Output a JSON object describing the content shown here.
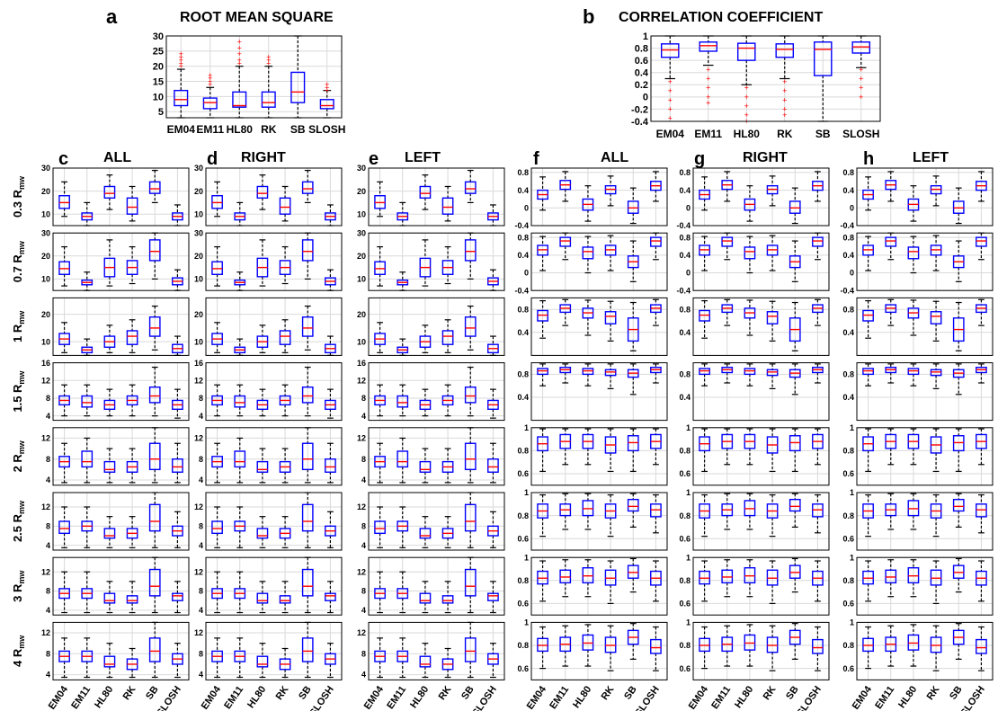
{
  "panel_a": {
    "letter": "a",
    "title": "ROOT MEAN SQUARE",
    "categories": [
      "EM04",
      "EM11",
      "HL80",
      "RK",
      "SB",
      "SLOSH"
    ],
    "yticks": [
      5,
      10,
      15,
      20,
      25,
      30
    ],
    "ylim": [
      3,
      30
    ]
  },
  "panel_b": {
    "letter": "b",
    "title": "CORRELATION COEFFICIENT",
    "categories": [
      "EM04",
      "EM11",
      "HL80",
      "RK",
      "SB",
      "SLOSH"
    ],
    "yticks": [
      -0.4,
      -0.2,
      0,
      0.2,
      0.4,
      0.6,
      0.8,
      1
    ],
    "ylim": [
      -0.4,
      1
    ]
  },
  "grid_columns": [
    {
      "letter": "c",
      "title": "ALL"
    },
    {
      "letter": "d",
      "title": "RIGHT"
    },
    {
      "letter": "e",
      "title": "LEFT"
    },
    {
      "letter": "f",
      "title": "ALL"
    },
    {
      "letter": "g",
      "title": "RIGHT"
    },
    {
      "letter": "h",
      "title": "LEFT"
    }
  ],
  "row_labels": [
    {
      "value": "0.3 R",
      "sub": "mw"
    },
    {
      "value": "0.7 R",
      "sub": "mw"
    },
    {
      "value": "1 R",
      "sub": "mw"
    },
    {
      "value": "1.5 R",
      "sub": "mw"
    },
    {
      "value": "2 R",
      "sub": "mw"
    },
    {
      "value": "2.5 R",
      "sub": "mw"
    },
    {
      "value": "3 R",
      "sub": "mw"
    },
    {
      "value": "4 R",
      "sub": "mw"
    }
  ],
  "rms_row_axes": [
    {
      "ylim": [
        5,
        30
      ],
      "yticks": [
        10,
        20,
        30
      ]
    },
    {
      "ylim": [
        5,
        30
      ],
      "yticks": [
        10,
        20,
        30
      ]
    },
    {
      "ylim": [
        5,
        26
      ],
      "yticks": [
        10,
        20
      ]
    },
    {
      "ylim": [
        3,
        16
      ],
      "yticks": [
        4,
        8,
        12,
        16
      ]
    },
    {
      "ylim": [
        3,
        14
      ],
      "yticks": [
        4,
        8,
        12
      ]
    },
    {
      "ylim": [
        3,
        15
      ],
      "yticks": [
        4,
        8,
        12
      ]
    },
    {
      "ylim": [
        3,
        15
      ],
      "yticks": [
        4,
        8,
        12
      ]
    },
    {
      "ylim": [
        3,
        14
      ],
      "yticks": [
        4,
        8,
        12
      ]
    }
  ],
  "cc_row_axes": [
    {
      "ylim": [
        -0.4,
        0.9
      ],
      "yticks": [
        -0.4,
        0,
        0.4,
        0.8
      ]
    },
    {
      "ylim": [
        -0.4,
        0.9
      ],
      "yticks": [
        -0.4,
        0,
        0.4,
        0.8
      ]
    },
    {
      "ylim": [
        0,
        1
      ],
      "yticks": [
        0.4,
        0.8
      ]
    },
    {
      "ylim": [
        0,
        1
      ],
      "yticks": [
        0.4,
        0.8
      ]
    },
    {
      "ylim": [
        0.5,
        1
      ],
      "yticks": [
        0.6,
        0.8,
        1
      ]
    },
    {
      "ylim": [
        0.5,
        1
      ],
      "yticks": [
        0.6,
        0.8,
        1
      ]
    },
    {
      "ylim": [
        0.5,
        1
      ],
      "yticks": [
        0.6,
        0.8,
        1
      ]
    },
    {
      "ylim": [
        0.5,
        1
      ],
      "yticks": [
        0.6,
        0.8,
        1
      ]
    }
  ],
  "colors": {
    "box": "#0000ff",
    "median": "#ff0000",
    "whisker": "#000000",
    "outlier": "#ff0000",
    "grid": "#d9d9d9"
  },
  "chart_data": [
    {
      "type": "box",
      "panel": "a",
      "title": "ROOT MEAN SQUARE",
      "categories": [
        "EM04",
        "EM11",
        "HL80",
        "RK",
        "SB",
        "SLOSH"
      ],
      "ylim": [
        3,
        30
      ],
      "stats": [
        [
          3,
          7,
          9,
          12,
          19
        ],
        [
          3,
          6,
          8,
          9.5,
          13
        ],
        [
          3,
          6.5,
          7,
          11.5,
          20
        ],
        [
          3,
          6.5,
          8,
          11.5,
          20
        ],
        [
          3,
          8,
          11.5,
          18,
          31
        ],
        [
          3,
          6,
          7,
          9,
          12
        ]
      ],
      "outliers": [
        [
          20,
          21,
          22,
          23,
          24
        ],
        [
          14,
          15,
          16,
          17
        ],
        [
          21,
          22,
          24,
          26,
          28
        ],
        [
          21,
          22,
          23
        ],
        [],
        [
          12,
          13,
          14
        ]
      ]
    },
    {
      "type": "box",
      "panel": "b",
      "title": "CORRELATION COEFFICIENT",
      "categories": [
        "EM04",
        "EM11",
        "HL80",
        "RK",
        "SB",
        "SLOSH"
      ],
      "ylim": [
        -0.4,
        1
      ],
      "stats": [
        [
          0.3,
          0.65,
          0.77,
          0.87,
          1
        ],
        [
          0.52,
          0.75,
          0.84,
          0.9,
          1
        ],
        [
          0.2,
          0.6,
          0.8,
          0.88,
          1
        ],
        [
          0.3,
          0.65,
          0.78,
          0.87,
          1
        ],
        [
          -0.4,
          0.35,
          0.78,
          0.9,
          1
        ],
        [
          0.48,
          0.72,
          0.82,
          0.9,
          1
        ]
      ],
      "outliers": [
        [
          0.25,
          0.1,
          -0.05,
          -0.2,
          -0.35
        ],
        [
          0.45,
          0.3,
          0.15,
          0,
          -0.1
        ],
        [
          0.15,
          0,
          -0.15,
          -0.3,
          -0.4
        ],
        [
          0.25,
          0.1,
          -0.05,
          -0.2,
          -0.3
        ],
        [],
        [
          0.45,
          0.3,
          0.15,
          0
        ]
      ]
    },
    {
      "type": "box",
      "panel": "c-e",
      "metric": "RMS",
      "categories": [
        "EM04",
        "EM11",
        "HL80",
        "RK",
        "SB",
        "SLOSH"
      ],
      "columns": [
        "ALL",
        "RIGHT",
        "LEFT"
      ],
      "rows": [
        {
          "stats": [
            [
              9,
              12.5,
              15,
              18,
              24
            ],
            [
              5,
              7.5,
              9,
              10.5,
              15
            ],
            [
              12,
              17,
              19,
              22,
              27
            ],
            [
              7,
              10,
              13,
              17,
              22
            ],
            [
              15,
              19,
              21,
              24,
              29
            ],
            [
              5,
              7.5,
              9,
              10.5,
              14
            ]
          ]
        },
        {
          "stats": [
            [
              7,
              12,
              14.5,
              17.5,
              24
            ],
            [
              5,
              7.5,
              8.5,
              9.5,
              13
            ],
            [
              7,
              11,
              15,
              19,
              27
            ],
            [
              8,
              12,
              15,
              18,
              24
            ],
            [
              10,
              18,
              22,
              27,
              30
            ],
            [
              5,
              7.5,
              9,
              10.5,
              14
            ]
          ]
        },
        {
          "stats": [
            [
              6,
              9,
              11,
              13,
              17
            ],
            [
              5,
              6,
              7,
              8,
              11
            ],
            [
              6,
              8,
              10,
              12,
              16
            ],
            [
              6,
              9,
              12,
              14,
              18
            ],
            [
              7,
              12,
              15,
              19,
              23
            ],
            [
              5,
              6,
              7.5,
              9,
              12
            ]
          ]
        },
        {
          "stats": [
            [
              4,
              6.5,
              7.5,
              8.5,
              11
            ],
            [
              4,
              6,
              7,
              8.5,
              11
            ],
            [
              4,
              5.5,
              6.5,
              7.5,
              10
            ],
            [
              4,
              6.5,
              7.5,
              8.5,
              11
            ],
            [
              4,
              7,
              8.5,
              10.5,
              15
            ],
            [
              3.5,
              5.5,
              6.5,
              7.5,
              10
            ]
          ]
        },
        {
          "stats": [
            [
              3.5,
              6.5,
              7.5,
              8.5,
              11
            ],
            [
              3.5,
              6.5,
              7.5,
              9.5,
              12
            ],
            [
              3.5,
              5.5,
              6,
              7.5,
              10
            ],
            [
              3.5,
              5.5,
              6.5,
              7.5,
              10
            ],
            [
              3.5,
              6,
              8,
              11,
              14
            ],
            [
              3.5,
              5.5,
              6.5,
              8,
              11
            ]
          ]
        },
        {
          "stats": [
            [
              3.5,
              6.5,
              7.5,
              9,
              12
            ],
            [
              3.5,
              7,
              8,
              9,
              12
            ],
            [
              3.5,
              5.5,
              6,
              7.5,
              10
            ],
            [
              3.5,
              5.5,
              6.5,
              7.5,
              10
            ],
            [
              3.5,
              7,
              9,
              12.5,
              15
            ],
            [
              3.5,
              6,
              7,
              8,
              11
            ]
          ]
        },
        {
          "stats": [
            [
              3.5,
              6.5,
              7.5,
              8.5,
              12
            ],
            [
              3.5,
              6.5,
              7.5,
              8.5,
              12
            ],
            [
              3.5,
              5.5,
              6,
              7.5,
              10
            ],
            [
              3.5,
              5.5,
              6,
              7,
              10
            ],
            [
              3.5,
              7,
              9,
              12.5,
              15
            ],
            [
              3.5,
              6,
              7,
              7.5,
              10
            ]
          ]
        },
        {
          "stats": [
            [
              3.5,
              6.5,
              7.5,
              8.5,
              11
            ],
            [
              3.5,
              6.5,
              7.5,
              8.5,
              11
            ],
            [
              3.5,
              5.5,
              6,
              7.5,
              10
            ],
            [
              3.5,
              5,
              6,
              7,
              9
            ],
            [
              3.5,
              6.5,
              8.5,
              11,
              14
            ],
            [
              3.5,
              6,
              7,
              8,
              10
            ]
          ]
        }
      ]
    },
    {
      "type": "box",
      "panel": "f-h",
      "metric": "CORRELATION COEFFICIENT",
      "categories": [
        "EM04",
        "EM11",
        "HL80",
        "RK",
        "SB",
        "SLOSH"
      ],
      "columns": [
        "ALL",
        "RIGHT",
        "LEFT"
      ],
      "rows": [
        {
          "stats": [
            [
              -0.05,
              0.2,
              0.3,
              0.4,
              0.7
            ],
            [
              0.15,
              0.42,
              0.52,
              0.62,
              0.82
            ],
            [
              -0.3,
              -0.05,
              0.08,
              0.2,
              0.5
            ],
            [
              0.05,
              0.32,
              0.42,
              0.5,
              0.72
            ],
            [
              -0.35,
              -0.12,
              0,
              0.15,
              0.45
            ],
            [
              0.15,
              0.4,
              0.5,
              0.6,
              0.82
            ]
          ]
        },
        {
          "stats": [
            [
              0.05,
              0.4,
              0.52,
              0.62,
              0.82
            ],
            [
              0.3,
              0.6,
              0.72,
              0.8,
              0.9
            ],
            [
              0,
              0.32,
              0.48,
              0.58,
              0.82
            ],
            [
              0.05,
              0.4,
              0.52,
              0.62,
              0.84
            ],
            [
              -0.2,
              0.12,
              0.25,
              0.38,
              0.72
            ],
            [
              0.3,
              0.6,
              0.72,
              0.8,
              0.9
            ]
          ]
        },
        {
          "stats": [
            [
              0.3,
              0.6,
              0.7,
              0.78,
              0.95
            ],
            [
              0.52,
              0.75,
              0.82,
              0.88,
              0.97
            ],
            [
              0.35,
              0.65,
              0.74,
              0.82,
              0.96
            ],
            [
              0.25,
              0.55,
              0.68,
              0.76,
              0.94
            ],
            [
              0.08,
              0.25,
              0.45,
              0.65,
              0.92
            ],
            [
              0.52,
              0.75,
              0.82,
              0.88,
              0.97
            ]
          ]
        },
        {
          "stats": [
            [
              0.6,
              0.8,
              0.86,
              0.9,
              0.98
            ],
            [
              0.65,
              0.83,
              0.88,
              0.92,
              0.98
            ],
            [
              0.6,
              0.8,
              0.86,
              0.9,
              0.98
            ],
            [
              0.55,
              0.78,
              0.84,
              0.88,
              0.98
            ],
            [
              0.45,
              0.75,
              0.82,
              0.88,
              0.98
            ],
            [
              0.65,
              0.83,
              0.88,
              0.92,
              0.98
            ]
          ]
        },
        {
          "stats": [
            [
              0.62,
              0.8,
              0.86,
              0.92,
              0.99
            ],
            [
              0.68,
              0.82,
              0.88,
              0.94,
              0.99
            ],
            [
              0.68,
              0.82,
              0.88,
              0.94,
              0.99
            ],
            [
              0.62,
              0.78,
              0.85,
              0.92,
              0.99
            ],
            [
              0.62,
              0.8,
              0.87,
              0.93,
              0.99
            ],
            [
              0.68,
              0.82,
              0.88,
              0.94,
              0.99
            ]
          ]
        },
        {
          "stats": [
            [
              0.62,
              0.78,
              0.84,
              0.9,
              0.98
            ],
            [
              0.68,
              0.8,
              0.85,
              0.9,
              0.99
            ],
            [
              0.68,
              0.8,
              0.86,
              0.93,
              0.99
            ],
            [
              0.62,
              0.78,
              0.84,
              0.9,
              0.98
            ],
            [
              0.7,
              0.84,
              0.88,
              0.94,
              0.99
            ],
            [
              0.65,
              0.79,
              0.85,
              0.9,
              0.98
            ]
          ]
        },
        {
          "stats": [
            [
              0.62,
              0.77,
              0.82,
              0.88,
              0.97
            ],
            [
              0.66,
              0.78,
              0.83,
              0.89,
              0.98
            ],
            [
              0.66,
              0.78,
              0.84,
              0.91,
              0.98
            ],
            [
              0.6,
              0.76,
              0.82,
              0.89,
              0.97
            ],
            [
              0.7,
              0.82,
              0.87,
              0.93,
              0.99
            ],
            [
              0.62,
              0.76,
              0.82,
              0.88,
              0.97
            ]
          ]
        },
        {
          "stats": [
            [
              0.6,
              0.75,
              0.8,
              0.86,
              0.96
            ],
            [
              0.62,
              0.75,
              0.81,
              0.87,
              0.97
            ],
            [
              0.62,
              0.76,
              0.82,
              0.89,
              0.98
            ],
            [
              0.58,
              0.74,
              0.8,
              0.87,
              0.97
            ],
            [
              0.68,
              0.81,
              0.87,
              0.93,
              0.99
            ],
            [
              0.58,
              0.73,
              0.78,
              0.85,
              0.96
            ]
          ]
        }
      ]
    }
  ]
}
